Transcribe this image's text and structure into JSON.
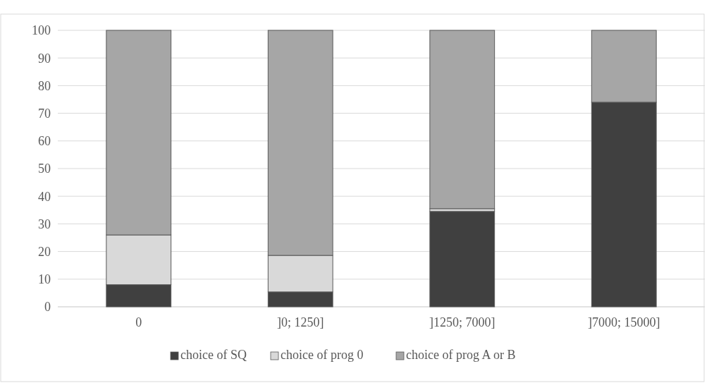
{
  "chart_data": {
    "type": "bar",
    "stacked": true,
    "categories": [
      "0",
      "]0; 1250]",
      "]1250; 7000]",
      "]7000; 15000]"
    ],
    "series": [
      {
        "name": "choice of SQ",
        "color": "#404040",
        "values": [
          8,
          5.4,
          34.5,
          74
        ]
      },
      {
        "name": "choice of prog 0",
        "color": "#d9d9d9",
        "values": [
          18,
          13.2,
          1,
          0
        ]
      },
      {
        "name": "choice of prog A or B",
        "color": "#a6a6a6",
        "values": [
          74,
          81.4,
          64.5,
          26
        ]
      }
    ],
    "ylim": [
      0,
      100
    ],
    "yticks": [
      0,
      10,
      20,
      30,
      40,
      50,
      60,
      70,
      80,
      90,
      100
    ],
    "grid": "y",
    "legend": "bottom"
  }
}
